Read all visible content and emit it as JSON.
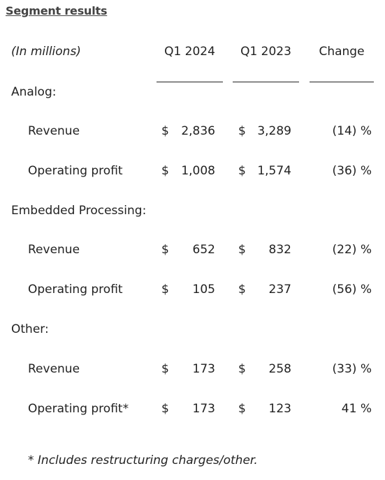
{
  "title": "Segment results",
  "header": {
    "unit_note": "(In millions)",
    "col1": "Q1 2024",
    "col2": "Q1 2023",
    "col3": "Change"
  },
  "segments": [
    {
      "name": "Analog:",
      "rows": [
        {
          "label": "Revenue",
          "cur_symbol": "$",
          "q1_2024": "2,836",
          "prev_symbol": "$",
          "q1_2023": "3,289",
          "change": "(14) %"
        },
        {
          "label": "Operating profit",
          "cur_symbol": "$",
          "q1_2024": "1,008",
          "prev_symbol": "$",
          "q1_2023": "1,574",
          "change": "(36) %"
        }
      ]
    },
    {
      "name": "Embedded Processing:",
      "rows": [
        {
          "label": "Revenue",
          "cur_symbol": "$",
          "q1_2024": "652",
          "prev_symbol": "$",
          "q1_2023": "832",
          "change": "(22) %"
        },
        {
          "label": "Operating profit",
          "cur_symbol": "$",
          "q1_2024": "105",
          "prev_symbol": "$",
          "q1_2023": "237",
          "change": "(56) %"
        }
      ]
    },
    {
      "name": "Other:",
      "rows": [
        {
          "label": "Revenue",
          "cur_symbol": "$",
          "q1_2024": "173",
          "prev_symbol": "$",
          "q1_2023": "258",
          "change": "(33) %"
        },
        {
          "label": "Operating profit*",
          "cur_symbol": "$",
          "q1_2024": "173",
          "prev_symbol": "$",
          "q1_2023": "123",
          "change": "41 %"
        }
      ]
    }
  ],
  "footnote": "* Includes restructuring charges/other."
}
